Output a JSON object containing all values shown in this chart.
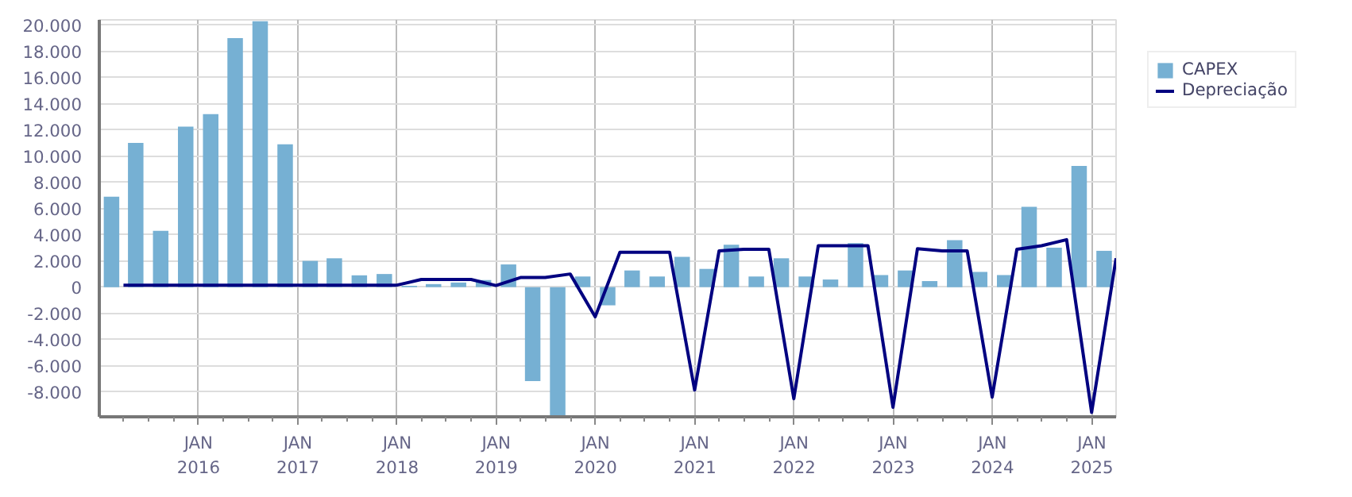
{
  "chart_data": {
    "type": "bar",
    "legend": "right",
    "grid": true,
    "xlim": [
      "2015-01-01",
      "2025-03-31"
    ],
    "xticks": [
      {
        "value": "2015-04-01",
        "label": null
      },
      {
        "value": "2015-07-01",
        "label": null
      },
      {
        "value": "2015-10-01",
        "label": null
      },
      {
        "value": "2016-01-01",
        "label": "JAN\n2016"
      },
      {
        "value": "2016-04-01",
        "label": null
      },
      {
        "value": "2016-07-01",
        "label": null
      },
      {
        "value": "2016-10-01",
        "label": null
      },
      {
        "value": "2017-01-01",
        "label": "JAN\n2017"
      },
      {
        "value": "2017-04-01",
        "label": null
      },
      {
        "value": "2017-07-01",
        "label": null
      },
      {
        "value": "2017-10-01",
        "label": null
      },
      {
        "value": "2018-01-01",
        "label": "JAN\n2018"
      },
      {
        "value": "2018-04-01",
        "label": null
      },
      {
        "value": "2018-07-01",
        "label": null
      },
      {
        "value": "2018-10-01",
        "label": null
      },
      {
        "value": "2019-01-01",
        "label": "JAN\n2019"
      },
      {
        "value": "2019-04-01",
        "label": null
      },
      {
        "value": "2019-07-01",
        "label": null
      },
      {
        "value": "2019-10-01",
        "label": null
      },
      {
        "value": "2020-01-01",
        "label": "JAN\n2020"
      },
      {
        "value": "2020-04-01",
        "label": null
      },
      {
        "value": "2020-07-01",
        "label": null
      },
      {
        "value": "2020-10-01",
        "label": null
      },
      {
        "value": "2021-01-01",
        "label": "JAN\n2021"
      },
      {
        "value": "2021-04-01",
        "label": null
      },
      {
        "value": "2021-07-01",
        "label": null
      },
      {
        "value": "2021-10-01",
        "label": null
      },
      {
        "value": "2022-01-01",
        "label": "JAN\n2022"
      },
      {
        "value": "2022-04-01",
        "label": null
      },
      {
        "value": "2022-07-01",
        "label": null
      },
      {
        "value": "2022-10-01",
        "label": null
      },
      {
        "value": "2023-01-01",
        "label": "JAN\n2023"
      },
      {
        "value": "2023-04-01",
        "label": null
      },
      {
        "value": "2023-07-01",
        "label": null
      },
      {
        "value": "2023-10-01",
        "label": null
      },
      {
        "value": "2024-01-01",
        "label": "JAN\n2024"
      },
      {
        "value": "2024-04-01",
        "label": null
      },
      {
        "value": "2024-07-01",
        "label": null
      },
      {
        "value": "2024-10-01",
        "label": null
      },
      {
        "value": "2025-01-01",
        "label": "JAN\n2025"
      }
    ],
    "ylim": [
      -9900,
      20400
    ],
    "yticks": [
      {
        "value": -8000,
        "label": "-8.000"
      },
      {
        "value": -6000,
        "label": "-6.000"
      },
      {
        "value": -4000,
        "label": "-4.000"
      },
      {
        "value": -2000,
        "label": "-2.000"
      },
      0,
      {
        "value": 2000,
        "label": "2.000"
      },
      {
        "value": 4000,
        "label": "4.000"
      },
      {
        "value": 6000,
        "label": "6.000"
      },
      {
        "value": 8000,
        "label": "8.000"
      },
      {
        "value": 10000,
        "label": "10.000"
      },
      {
        "value": 12000,
        "label": "12.000"
      },
      {
        "value": 14000,
        "label": "14.000"
      },
      {
        "value": 16000,
        "label": "16.000"
      },
      {
        "value": 18000,
        "label": "18.000"
      },
      {
        "value": 20000,
        "label": "20.000"
      }
    ],
    "series": [
      {
        "name": "CAPEX",
        "color": "#76b0d3",
        "x": [
          "2015-02-15",
          "2015-05-15",
          "2015-08-15",
          "2015-11-15",
          "2016-02-15",
          "2016-05-15",
          "2016-08-15",
          "2016-11-15",
          "2017-02-15",
          "2017-05-15",
          "2017-08-15",
          "2017-11-15",
          "2018-02-15",
          "2018-05-15",
          "2018-08-15",
          "2018-11-15",
          "2019-02-15",
          "2019-05-15",
          "2019-08-15",
          "2019-11-15",
          "2020-02-15",
          "2020-05-15",
          "2020-08-15",
          "2020-11-15",
          "2021-02-15",
          "2021-05-15",
          "2021-08-15",
          "2021-11-15",
          "2022-02-15",
          "2022-05-15",
          "2022-08-15",
          "2022-11-15",
          "2023-02-15",
          "2023-05-15",
          "2023-08-15",
          "2023-11-15",
          "2024-02-15",
          "2024-05-15",
          "2024-08-15",
          "2024-11-15",
          "2025-02-15"
        ],
        "values": [
          6900,
          11000,
          4300,
          12250,
          13200,
          19000,
          20300,
          10900,
          2000,
          2200,
          900,
          1000,
          100,
          230,
          350,
          540,
          1730,
          -7170,
          -9900,
          810,
          -1390,
          1270,
          810,
          2310,
          1390,
          3240,
          810,
          2200,
          810,
          580,
          3350,
          920,
          1270,
          460,
          3580,
          1160,
          920,
          6130,
          3010,
          9250,
          2770
        ]
      },
      {
        "name": "Depreciação",
        "type": "line",
        "color": "#000080",
        "x": [
          "2015-03-31",
          "2015-06-30",
          "2015-09-30",
          "2015-12-31",
          "2016-03-31",
          "2016-06-30",
          "2016-09-30",
          "2016-12-31",
          "2017-03-31",
          "2017-06-30",
          "2017-09-30",
          "2017-12-31",
          "2018-03-31",
          "2018-06-30",
          "2018-09-30",
          "2018-12-31",
          "2019-03-31",
          "2019-06-30",
          "2019-09-30",
          "2019-12-31",
          "2020-03-31",
          "2020-06-30",
          "2020-09-30",
          "2020-12-31",
          "2021-03-31",
          "2021-06-30",
          "2021-09-30",
          "2021-12-31",
          "2022-03-31",
          "2022-06-30",
          "2022-09-30",
          "2022-12-31",
          "2023-03-31",
          "2023-06-30",
          "2023-09-30",
          "2023-12-31",
          "2024-03-31",
          "2024-06-30",
          "2024-09-30",
          "2024-12-31",
          "2025-03-31"
        ],
        "values": [
          150,
          150,
          150,
          150,
          150,
          150,
          150,
          150,
          150,
          150,
          150,
          150,
          580,
          580,
          580,
          120,
          730,
          730,
          1000,
          -2270,
          2660,
          2660,
          2660,
          -7860,
          2770,
          2890,
          2890,
          -8520,
          3160,
          3160,
          3160,
          -9170,
          2930,
          2770,
          2770,
          -8400,
          2890,
          3160,
          3620,
          -9560,
          2200
        ]
      }
    ]
  }
}
